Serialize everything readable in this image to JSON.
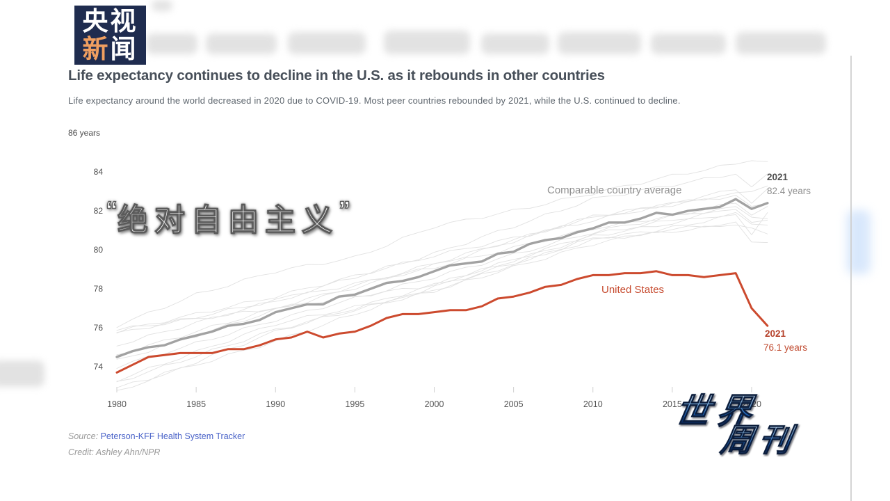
{
  "logo": {
    "top": "央视",
    "bottom_accent": "新",
    "bottom_rest": "闻",
    "bg_color": "#1f2c4f",
    "accent_color": "#f09f60"
  },
  "article": {
    "title": "Life expectancy continues to decline in the U.S. as it rebounds in other countries",
    "subtitle": "Life expectancy around the world decreased in 2020 due to COVID-19. Most peer countries rebounded by 2021, while the U.S. continued to decline.",
    "source_label": "Source:",
    "source_link": "Peterson-KFF Health System Tracker",
    "credit": "Credit: Ashley Ahn/NPR"
  },
  "overlay": {
    "quote_open": "“",
    "caption": "绝对自由主义",
    "quote_close": "”"
  },
  "watermark": {
    "line1": "世界",
    "line2": "周刊"
  },
  "colors": {
    "us_red": "#cc4a2e",
    "avg_gray": "#a2a2a2",
    "faint_gray": "#e1e1e1",
    "link_blue": "#4a63c8"
  },
  "chart_data": {
    "type": "line",
    "title": "Life expectancy continues to decline in the U.S. as it rebounds in other countries",
    "xlabel": "",
    "ylabel": "years",
    "xlim": [
      1980,
      2021
    ],
    "ylim": [
      73,
      86
    ],
    "grid": false,
    "y_top_label": "86 years",
    "y_ticks": [
      84,
      82,
      80,
      78,
      76,
      74
    ],
    "x_ticks": [
      1980,
      1985,
      1990,
      1995,
      2000,
      2005,
      2010,
      2015,
      2020
    ],
    "years": [
      1980,
      1981,
      1982,
      1983,
      1984,
      1985,
      1986,
      1987,
      1988,
      1989,
      1990,
      1991,
      1992,
      1993,
      1994,
      1995,
      1996,
      1997,
      1998,
      1999,
      2000,
      2001,
      2002,
      2003,
      2004,
      2005,
      2006,
      2007,
      2008,
      2009,
      2010,
      2011,
      2012,
      2013,
      2014,
      2015,
      2016,
      2017,
      2018,
      2019,
      2020,
      2021
    ],
    "series": [
      {
        "name": "Comparable country average",
        "color": "#a2a2a2",
        "width": 3.4,
        "values": [
          74.5,
          74.8,
          75.0,
          75.1,
          75.4,
          75.6,
          75.8,
          76.1,
          76.2,
          76.4,
          76.8,
          77.0,
          77.2,
          77.2,
          77.6,
          77.7,
          78.0,
          78.3,
          78.4,
          78.6,
          78.9,
          79.2,
          79.3,
          79.4,
          79.8,
          79.9,
          80.3,
          80.5,
          80.6,
          80.9,
          81.1,
          81.4,
          81.4,
          81.6,
          81.9,
          81.8,
          82.0,
          82.1,
          82.2,
          82.6,
          82.1,
          82.4
        ]
      },
      {
        "name": "United States",
        "color": "#cc4a2e",
        "width": 3.0,
        "values": [
          73.7,
          74.1,
          74.5,
          74.6,
          74.7,
          74.7,
          74.7,
          74.9,
          74.9,
          75.1,
          75.4,
          75.5,
          75.8,
          75.5,
          75.7,
          75.8,
          76.1,
          76.5,
          76.7,
          76.7,
          76.8,
          76.9,
          76.9,
          77.1,
          77.5,
          77.6,
          77.8,
          78.1,
          78.2,
          78.5,
          78.7,
          78.7,
          78.8,
          78.8,
          78.9,
          78.7,
          78.7,
          78.6,
          78.7,
          78.8,
          77.0,
          76.1
        ]
      }
    ],
    "background_series": [
      {
        "points": [
          [
            1980,
            76.1
          ],
          [
            1985,
            77.7
          ],
          [
            1990,
            78.9
          ],
          [
            1995,
            79.6
          ],
          [
            2000,
            81.2
          ],
          [
            2005,
            82.0
          ],
          [
            2010,
            82.9
          ],
          [
            2015,
            83.8
          ],
          [
            2019,
            84.4
          ],
          [
            2020,
            84.6
          ],
          [
            2021,
            84.5
          ]
        ]
      },
      {
        "points": [
          [
            1980,
            75.7
          ],
          [
            1990,
            77.4
          ],
          [
            2000,
            79.8
          ],
          [
            2010,
            82.6
          ],
          [
            2019,
            83.9
          ],
          [
            2020,
            83.2
          ],
          [
            2021,
            83.9
          ]
        ]
      },
      {
        "points": [
          [
            1980,
            74.6
          ],
          [
            1990,
            77.0
          ],
          [
            2000,
            79.3
          ],
          [
            2010,
            81.7
          ],
          [
            2019,
            82.9
          ],
          [
            2020,
            83.0
          ],
          [
            2021,
            83.3
          ]
        ]
      },
      {
        "points": [
          [
            1980,
            75.8
          ],
          [
            1990,
            77.6
          ],
          [
            2000,
            79.7
          ],
          [
            2010,
            81.5
          ],
          [
            2019,
            83.1
          ],
          [
            2020,
            82.4
          ],
          [
            2021,
            83.1
          ]
        ]
      },
      {
        "points": [
          [
            1980,
            74.3
          ],
          [
            1990,
            76.9
          ],
          [
            2000,
            79.2
          ],
          [
            2010,
            81.7
          ],
          [
            2019,
            82.8
          ],
          [
            2020,
            82.2
          ],
          [
            2021,
            82.4
          ]
        ]
      },
      {
        "points": [
          [
            1980,
            75.1
          ],
          [
            1990,
            77.4
          ],
          [
            2000,
            79.1
          ],
          [
            2010,
            81.1
          ],
          [
            2019,
            82.2
          ],
          [
            2020,
            81.7
          ],
          [
            2021,
            81.6
          ]
        ]
      },
      {
        "points": [
          [
            1980,
            75.9
          ],
          [
            1990,
            77.0
          ],
          [
            2000,
            78.2
          ],
          [
            2010,
            80.8
          ],
          [
            2019,
            82.1
          ],
          [
            2020,
            81.4
          ],
          [
            2021,
            81.5
          ]
        ]
      },
      {
        "points": [
          [
            1980,
            72.7
          ],
          [
            1990,
            75.8
          ],
          [
            2000,
            78.2
          ],
          [
            2010,
            80.7
          ],
          [
            2019,
            81.9
          ],
          [
            2020,
            81.3
          ],
          [
            2021,
            81.3
          ]
        ]
      },
      {
        "points": [
          [
            1980,
            73.3
          ],
          [
            1990,
            76.2
          ],
          [
            2000,
            77.9
          ],
          [
            2010,
            80.3
          ],
          [
            2019,
            81.8
          ],
          [
            2020,
            80.8
          ],
          [
            2021,
            81.9
          ]
        ]
      },
      {
        "points": [
          [
            1980,
            72.9
          ],
          [
            1990,
            75.3
          ],
          [
            2000,
            78.1
          ],
          [
            2010,
            80.5
          ],
          [
            2019,
            81.3
          ],
          [
            2020,
            81.1
          ],
          [
            2021,
            80.8
          ]
        ]
      },
      {
        "points": [
          [
            1980,
            73.2
          ],
          [
            1990,
            75.9
          ],
          [
            2000,
            77.9
          ],
          [
            2010,
            80.6
          ],
          [
            2019,
            81.4
          ],
          [
            2020,
            80.4
          ],
          [
            2021,
            80.4
          ]
        ]
      },
      {
        "points": [
          [
            1980,
            74.0
          ],
          [
            1990,
            76.4
          ],
          [
            2000,
            78.6
          ],
          [
            2010,
            80.9
          ],
          [
            2019,
            82.4
          ],
          [
            2020,
            81.8
          ],
          [
            2021,
            82.2
          ]
        ]
      }
    ],
    "annotations": {
      "avg_label": "Comparable country average",
      "avg_end_year": "2021",
      "avg_end_value": "82.4 years",
      "us_label": "United States",
      "us_end_year": "2021",
      "us_end_value": "76.1 years"
    }
  }
}
